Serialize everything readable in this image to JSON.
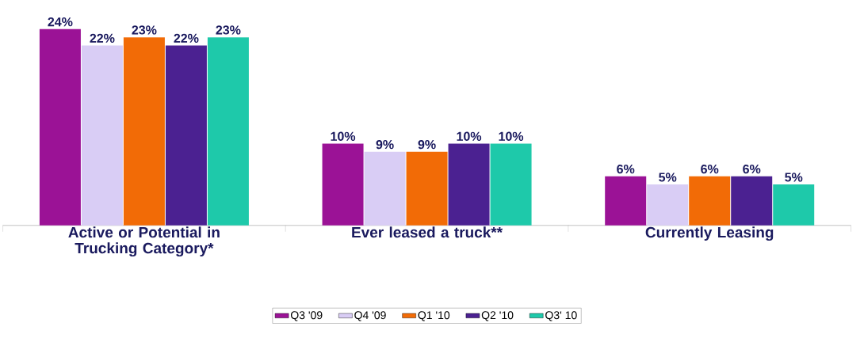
{
  "chart_data": {
    "type": "bar",
    "categories": [
      "Active or Potential in Trucking Category*",
      "Ever leased a truck**",
      "Currently Leasing"
    ],
    "ylim": [
      0,
      24
    ],
    "series": [
      {
        "name": "Q3 '09",
        "color": "#9b1296",
        "values": [
          24,
          10,
          6
        ],
        "value_labels": [
          "24%",
          "10%",
          "6%"
        ]
      },
      {
        "name": "Q4 '09",
        "color": "#d9cdf5",
        "values": [
          22,
          9,
          5
        ],
        "value_labels": [
          "22%",
          "9%",
          "5%"
        ]
      },
      {
        "name": "Q1 '10",
        "color": "#f26b06",
        "values": [
          23,
          9,
          6
        ],
        "value_labels": [
          "23%",
          "9%",
          "6%"
        ]
      },
      {
        "name": "Q2 '10",
        "color": "#4b2191",
        "values": [
          22,
          10,
          6
        ],
        "value_labels": [
          "22%",
          "10%",
          "6%"
        ]
      },
      {
        "name": "Q3' 10",
        "color": "#1ec9aa",
        "values": [
          23,
          10,
          5
        ],
        "value_labels": [
          "23%",
          "10%",
          "5%"
        ]
      }
    ],
    "legend": "bottom"
  }
}
